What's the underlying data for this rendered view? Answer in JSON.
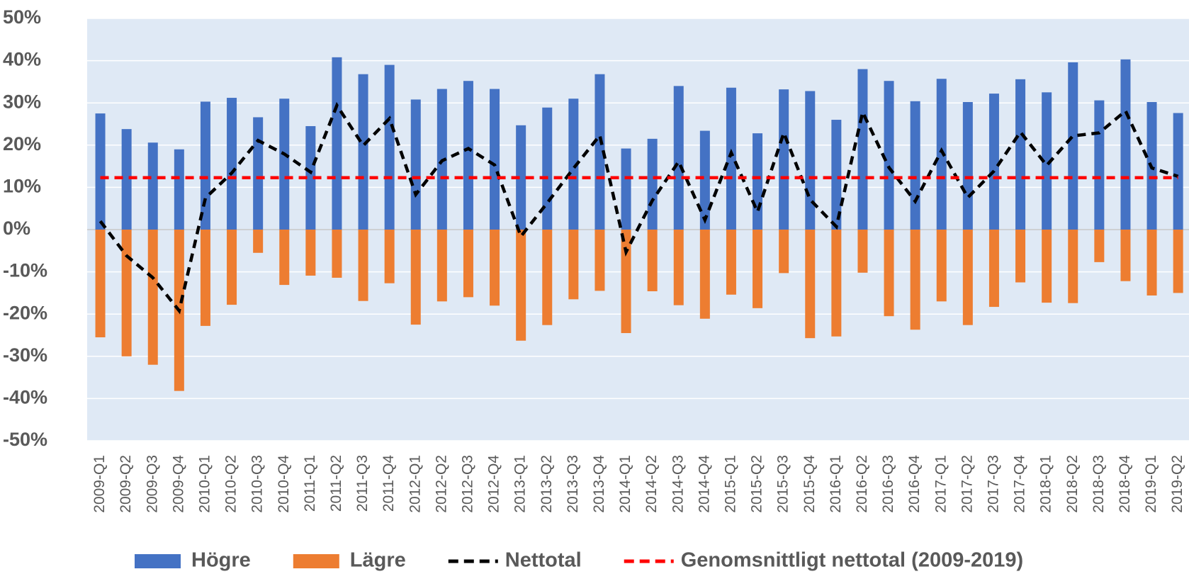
{
  "chart_data": {
    "type": "bar-line",
    "categories": [
      "2009-Q1",
      "2009-Q2",
      "2009-Q3",
      "2009-Q4",
      "2010-Q1",
      "2010-Q2",
      "2010-Q3",
      "2010-Q4",
      "2011-Q1",
      "2011-Q2",
      "2011-Q3",
      "2011-Q4",
      "2012-Q1",
      "2012-Q2",
      "2012-Q3",
      "2012-Q4",
      "2013-Q1",
      "2013-Q2",
      "2013-Q3",
      "2013-Q4",
      "2014-Q1",
      "2014-Q2",
      "2014-Q3",
      "2014-Q4",
      "2015-Q1",
      "2015-Q2",
      "2015-Q3",
      "2015-Q4",
      "2016-Q1",
      "2016-Q2",
      "2016-Q3",
      "2016-Q4",
      "2017-Q1",
      "2017-Q2",
      "2017-Q3",
      "2017-Q4",
      "2018-Q1",
      "2018-Q2",
      "2018-Q3",
      "2018-Q4",
      "2019-Q1",
      "2019-Q2"
    ],
    "series": [
      {
        "name": "Högre",
        "kind": "bar",
        "color": "#4472c4",
        "values": [
          27.5,
          23.8,
          20.6,
          19.0,
          30.3,
          31.2,
          26.6,
          31.0,
          24.5,
          40.8,
          36.8,
          39.0,
          30.8,
          33.3,
          35.2,
          33.3,
          24.7,
          28.9,
          31.0,
          36.8,
          19.2,
          21.5,
          34.0,
          23.4,
          33.6,
          22.8,
          33.2,
          32.8,
          26.0,
          38.0,
          35.2,
          30.4,
          35.7,
          30.2,
          32.2,
          35.6,
          32.5,
          39.6,
          30.6,
          40.3,
          30.2,
          27.6
        ]
      },
      {
        "name": "Lägre",
        "kind": "bar",
        "color": "#ed7d31",
        "values": [
          -25.5,
          -30.0,
          -32.0,
          -38.2,
          -22.8,
          -17.8,
          -5.5,
          -13.1,
          -10.9,
          -11.4,
          -16.9,
          -12.7,
          -22.5,
          -17.0,
          -16.0,
          -18.0,
          -26.3,
          -22.6,
          -16.5,
          -14.5,
          -24.5,
          -14.6,
          -17.9,
          -21.1,
          -15.4,
          -18.6,
          -10.3,
          -25.7,
          -25.3,
          -10.2,
          -20.5,
          -23.7,
          -17.0,
          -22.6,
          -18.3,
          -12.5,
          -17.3,
          -17.4,
          -7.7,
          -12.2,
          -15.6,
          -15.0
        ]
      },
      {
        "name": "Nettotal",
        "kind": "line",
        "color": "#000000",
        "values": [
          2.0,
          -6.2,
          -11.4,
          -19.2,
          7.5,
          13.4,
          21.1,
          17.9,
          13.6,
          29.4,
          19.9,
          26.3,
          8.3,
          16.3,
          19.2,
          15.3,
          -1.6,
          6.3,
          14.5,
          22.3,
          -5.3,
          6.9,
          16.1,
          2.3,
          18.2,
          4.2,
          22.9,
          7.1,
          0.7,
          27.8,
          14.7,
          6.7,
          18.7,
          7.6,
          13.9,
          23.1,
          15.2,
          22.2,
          22.9,
          28.1,
          14.6,
          12.6
        ]
      },
      {
        "name": "Genomsnittligt nettotal (2009-2019)",
        "kind": "line",
        "color": "#ff0000",
        "values": [
          12.3,
          12.3,
          12.3,
          12.3,
          12.3,
          12.3,
          12.3,
          12.3,
          12.3,
          12.3,
          12.3,
          12.3,
          12.3,
          12.3,
          12.3,
          12.3,
          12.3,
          12.3,
          12.3,
          12.3,
          12.3,
          12.3,
          12.3,
          12.3,
          12.3,
          12.3,
          12.3,
          12.3,
          12.3,
          12.3,
          12.3,
          12.3,
          12.3,
          12.3,
          12.3,
          12.3,
          12.3,
          12.3,
          12.3,
          12.3,
          12.3,
          12.3
        ]
      }
    ],
    "ylim": [
      -50,
      50
    ],
    "yticks": [
      {
        "value": -50,
        "label": "-50%"
      },
      {
        "value": -40,
        "label": "-40%"
      },
      {
        "value": -30,
        "label": "-30%"
      },
      {
        "value": -20,
        "label": "-20%"
      },
      {
        "value": -10,
        "label": "-10%"
      },
      {
        "value": 0,
        "label": "0%"
      },
      {
        "value": 10,
        "label": "10%"
      },
      {
        "value": 20,
        "label": "20%"
      },
      {
        "value": 30,
        "label": "30%"
      },
      {
        "value": 40,
        "label": "40%"
      },
      {
        "value": 50,
        "label": "50%"
      }
    ],
    "grid": true
  }
}
